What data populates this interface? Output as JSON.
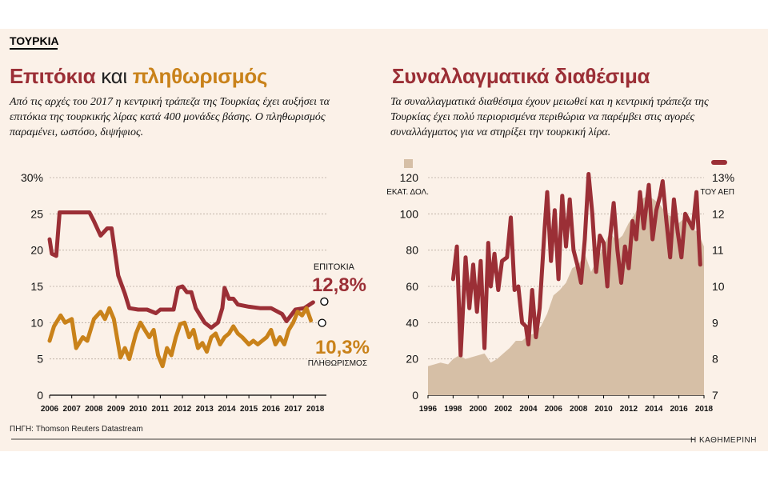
{
  "section_tag": "ΤΟΥΡΚΙΑ",
  "left": {
    "title_part1": "Επιτόκια",
    "title_part2": "και",
    "title_part3": "πληθωρισμός",
    "description": "Από τις αρχές του 2017 η κεντρική τράπεζα της Τουρκίας έχει αυξήσει τα επιτόκια της τουρκικής λίρας κατά 400 μονάδες βάσης. Ο πληθωρισμός παραμένει, ωστόσο, διψήφιος."
  },
  "right": {
    "title": "Συναλλαγματικά διαθέσιμα",
    "description": "Τα συναλλαγματικά διαθέσιμα έχουν μειωθεί και η κεντρική τράπεζα της Τουρκίας έχει πολύ περιορισμένα περιθώρια να παρέμβει στις αγορές συναλλάγματος για να στηρίξει την τουρκική λίρα."
  },
  "source": "ΠΗΓΗ: Thomson Reuters Datastream",
  "brand": "Η ΚΑΘΗΜΕΡΙΝΗ",
  "colors": {
    "red": "#9b2f36",
    "orange": "#c9821a",
    "area": "#d6bfa6",
    "background": "#fbf1e8"
  },
  "chart_data": [
    {
      "type": "line",
      "x_tick_labels": [
        "2006",
        "2007",
        "2008",
        "2009",
        "2010",
        "2011",
        "2012",
        "2013",
        "2014",
        "2015",
        "2016",
        "2017",
        "2018"
      ],
      "y_tick_labels": [
        "0",
        "5",
        "10",
        "15",
        "20",
        "25",
        "30%"
      ],
      "ylim": [
        0,
        30
      ],
      "xlim": [
        2006,
        2018.5
      ],
      "grid": "horizontal",
      "series": [
        {
          "name": "ΕΠΙΤΟΚΙΑ",
          "color": "#9b2f36",
          "end_label": "12,8%",
          "points": [
            [
              2006.0,
              21.5
            ],
            [
              2006.1,
              19.5
            ],
            [
              2006.3,
              19.2
            ],
            [
              2006.45,
              25.2
            ],
            [
              2007.0,
              25.2
            ],
            [
              2007.5,
              25.2
            ],
            [
              2007.8,
              25.2
            ],
            [
              2008.0,
              24
            ],
            [
              2008.3,
              22
            ],
            [
              2008.6,
              23
            ],
            [
              2008.8,
              23
            ],
            [
              2009.1,
              16.5
            ],
            [
              2009.4,
              14
            ],
            [
              2009.6,
              12
            ],
            [
              2010.0,
              11.8
            ],
            [
              2010.4,
              11.8
            ],
            [
              2010.8,
              11.3
            ],
            [
              2011.0,
              11.8
            ],
            [
              2011.4,
              11.8
            ],
            [
              2011.6,
              11.8
            ],
            [
              2011.8,
              14.8
            ],
            [
              2012.0,
              15
            ],
            [
              2012.2,
              14.2
            ],
            [
              2012.4,
              14.2
            ],
            [
              2012.6,
              12
            ],
            [
              2012.8,
              11
            ],
            [
              2013.0,
              10
            ],
            [
              2013.3,
              9.3
            ],
            [
              2013.6,
              10
            ],
            [
              2013.8,
              12
            ],
            [
              2013.9,
              14.8
            ],
            [
              2014.1,
              13.3
            ],
            [
              2014.3,
              13.3
            ],
            [
              2014.5,
              12.5
            ],
            [
              2015.0,
              12.2
            ],
            [
              2015.5,
              12
            ],
            [
              2016.0,
              12
            ],
            [
              2016.5,
              11.2
            ],
            [
              2016.7,
              10.2
            ],
            [
              2016.9,
              11
            ],
            [
              2017.1,
              11.8
            ],
            [
              2017.5,
              12
            ],
            [
              2017.9,
              12.8
            ]
          ]
        },
        {
          "name": "ΠΛΗΘΩΡΙΣΜΟΣ",
          "color": "#c9821a",
          "end_label": "10,3%",
          "points": [
            [
              2006.0,
              7.5
            ],
            [
              2006.2,
              9.5
            ],
            [
              2006.5,
              11
            ],
            [
              2006.7,
              10
            ],
            [
              2007.0,
              10.5
            ],
            [
              2007.2,
              6.5
            ],
            [
              2007.5,
              8
            ],
            [
              2007.7,
              7.5
            ],
            [
              2008.0,
              10.5
            ],
            [
              2008.3,
              11.5
            ],
            [
              2008.5,
              10.5
            ],
            [
              2008.7,
              12
            ],
            [
              2008.9,
              10.5
            ],
            [
              2009.2,
              5.2
            ],
            [
              2009.4,
              6.5
            ],
            [
              2009.6,
              5
            ],
            [
              2009.9,
              8.5
            ],
            [
              2010.1,
              10
            ],
            [
              2010.3,
              9
            ],
            [
              2010.5,
              8
            ],
            [
              2010.7,
              9
            ],
            [
              2010.9,
              5.5
            ],
            [
              2011.1,
              4
            ],
            [
              2011.3,
              6.5
            ],
            [
              2011.5,
              5.5
            ],
            [
              2011.7,
              8
            ],
            [
              2011.9,
              9.8
            ],
            [
              2012.1,
              10
            ],
            [
              2012.3,
              8
            ],
            [
              2012.5,
              9
            ],
            [
              2012.7,
              6.5
            ],
            [
              2012.9,
              7.2
            ],
            [
              2013.1,
              6
            ],
            [
              2013.3,
              8
            ],
            [
              2013.5,
              8.5
            ],
            [
              2013.7,
              7
            ],
            [
              2013.9,
              8
            ],
            [
              2014.1,
              8.5
            ],
            [
              2014.3,
              9.5
            ],
            [
              2014.5,
              8.5
            ],
            [
              2014.7,
              8
            ],
            [
              2015.0,
              7
            ],
            [
              2015.2,
              7.5
            ],
            [
              2015.4,
              7
            ],
            [
              2015.6,
              7.5
            ],
            [
              2015.8,
              8
            ],
            [
              2016.0,
              9
            ],
            [
              2016.2,
              7
            ],
            [
              2016.4,
              8
            ],
            [
              2016.6,
              7
            ],
            [
              2016.8,
              9
            ],
            [
              2017.0,
              10
            ],
            [
              2017.2,
              11.5
            ],
            [
              2017.4,
              11
            ],
            [
              2017.6,
              12
            ],
            [
              2017.8,
              10.3
            ]
          ]
        }
      ]
    },
    {
      "type": "area+line",
      "x_tick_labels": [
        "1996",
        "1998",
        "2000",
        "2002",
        "2004",
        "2006",
        "2008",
        "2010",
        "2012",
        "2014",
        "2016",
        "2018"
      ],
      "xlim": [
        1996,
        2018
      ],
      "left_axis": {
        "unit_label": "ΕΚΑΤ. ΔΟΛ.",
        "ticks": [
          "0",
          "20",
          "40",
          "60",
          "80",
          "100",
          "120"
        ],
        "range": [
          0,
          120
        ]
      },
      "right_axis": {
        "unit_label": "ΤΟΥ ΑΕΠ",
        "ticks": [
          "7",
          "8",
          "9",
          "10",
          "11",
          "12",
          "13%"
        ],
        "range": [
          7,
          13
        ]
      },
      "series": [
        {
          "name": "ΕΚΑΤ. ΔΟΛ.",
          "type": "area",
          "axis": "left",
          "color": "#d6bfa6",
          "points": [
            [
              1996,
              16
            ],
            [
              1997,
              18
            ],
            [
              1997.6,
              17
            ],
            [
              1998,
              20
            ],
            [
              1998.5,
              22
            ],
            [
              1999,
              20
            ],
            [
              1999.5,
              21
            ],
            [
              2000,
              22
            ],
            [
              2000.5,
              23
            ],
            [
              2001,
              18
            ],
            [
              2001.5,
              20
            ],
            [
              2002,
              23
            ],
            [
              2002.5,
              26
            ],
            [
              2003,
              30
            ],
            [
              2003.5,
              30
            ],
            [
              2004,
              33
            ],
            [
              2004.5,
              34
            ],
            [
              2005,
              38
            ],
            [
              2005.5,
              45
            ],
            [
              2006,
              55
            ],
            [
              2006.5,
              58
            ],
            [
              2007,
              62
            ],
            [
              2007.5,
              70
            ],
            [
              2008,
              72
            ],
            [
              2008.5,
              78
            ],
            [
              2009,
              68
            ],
            [
              2009.5,
              75
            ],
            [
              2010,
              82
            ],
            [
              2010.5,
              90
            ],
            [
              2011,
              85
            ],
            [
              2011.5,
              88
            ],
            [
              2012,
              95
            ],
            [
              2012.5,
              100
            ],
            [
              2013,
              108
            ],
            [
              2013.5,
              110
            ],
            [
              2014,
              108
            ],
            [
              2014.5,
              105
            ],
            [
              2015,
              100
            ],
            [
              2015.5,
              98
            ],
            [
              2016,
              95
            ],
            [
              2016.5,
              98
            ],
            [
              2017,
              92
            ],
            [
              2017.5,
              90
            ],
            [
              2018,
              82
            ]
          ]
        },
        {
          "name": "ΤΟΥ ΑΕΠ",
          "type": "line",
          "axis": "right",
          "color": "#9b2f36",
          "points": [
            [
              1998,
              10.2
            ],
            [
              1998.3,
              11.1
            ],
            [
              1998.6,
              8.1
            ],
            [
              1999.0,
              10.8
            ],
            [
              1999.3,
              9.4
            ],
            [
              1999.6,
              10.6
            ],
            [
              1999.9,
              9.3
            ],
            [
              2000.2,
              10.7
            ],
            [
              2000.5,
              8.3
            ],
            [
              2000.8,
              11.2
            ],
            [
              2001.0,
              10.0
            ],
            [
              2001.3,
              10.9
            ],
            [
              2001.6,
              9.9
            ],
            [
              2001.9,
              10.7
            ],
            [
              2002.3,
              10.8
            ],
            [
              2002.6,
              11.9
            ],
            [
              2002.9,
              9.9
            ],
            [
              2003.2,
              10.0
            ],
            [
              2003.5,
              9.0
            ],
            [
              2003.8,
              8.9
            ],
            [
              2004.0,
              8.4
            ],
            [
              2004.3,
              9.9
            ],
            [
              2004.6,
              8.6
            ],
            [
              2004.9,
              9.4
            ],
            [
              2005.3,
              11.6
            ],
            [
              2005.5,
              12.6
            ],
            [
              2005.8,
              10.7
            ],
            [
              2006.1,
              12.1
            ],
            [
              2006.4,
              10.2
            ],
            [
              2006.7,
              12.5
            ],
            [
              2007.0,
              11.1
            ],
            [
              2007.3,
              12.4
            ],
            [
              2007.6,
              11.0
            ],
            [
              2007.9,
              10.6
            ],
            [
              2008.2,
              10.1
            ],
            [
              2008.5,
              11.3
            ],
            [
              2008.8,
              13.1
            ],
            [
              2009.1,
              12.0
            ],
            [
              2009.4,
              10.4
            ],
            [
              2009.7,
              11.4
            ],
            [
              2010.0,
              11.2
            ],
            [
              2010.3,
              10.0
            ],
            [
              2010.5,
              11.3
            ],
            [
              2010.8,
              12.3
            ],
            [
              2011.1,
              11.0
            ],
            [
              2011.4,
              10.1
            ],
            [
              2011.7,
              11.1
            ],
            [
              2012.0,
              10.5
            ],
            [
              2012.3,
              11.8
            ],
            [
              2012.6,
              11.3
            ],
            [
              2012.9,
              12.6
            ],
            [
              2013.2,
              11.6
            ],
            [
              2013.6,
              12.8
            ],
            [
              2013.9,
              11.3
            ],
            [
              2014.2,
              12.1
            ],
            [
              2014.5,
              12.5
            ],
            [
              2014.7,
              12.9
            ],
            [
              2015.0,
              11.8
            ],
            [
              2015.3,
              10.8
            ],
            [
              2015.6,
              12.4
            ],
            [
              2015.9,
              11.5
            ],
            [
              2016.2,
              10.8
            ],
            [
              2016.5,
              12.0
            ],
            [
              2016.8,
              11.8
            ],
            [
              2017.1,
              11.6
            ],
            [
              2017.4,
              12.6
            ],
            [
              2017.7,
              10.6
            ]
          ]
        }
      ]
    }
  ]
}
